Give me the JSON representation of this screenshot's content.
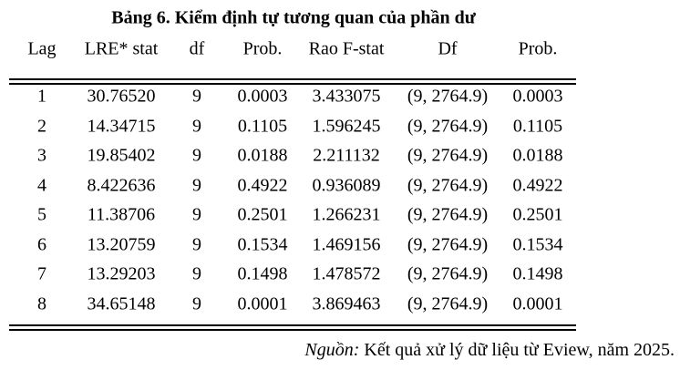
{
  "table": {
    "title": "Bảng 6. Kiểm định tự tương quan của phần dư",
    "header": [
      "Lag",
      "LRE* stat",
      "df",
      "Prob.",
      "Rao F-stat",
      "Df",
      "Prob."
    ],
    "rows": [
      [
        "1",
        "30.76520",
        "9",
        "0.0003",
        "3.433075",
        "(9, 2764.9)",
        "0.0003"
      ],
      [
        "2",
        "14.34715",
        "9",
        "0.1105",
        "1.596245",
        "(9, 2764.9)",
        "0.1105"
      ],
      [
        "3",
        "19.85402",
        "9",
        "0.0188",
        "2.211132",
        "(9, 2764.9)",
        "0.0188"
      ],
      [
        "4",
        "8.422636",
        "9",
        "0.4922",
        "0.936089",
        "(9, 2764.9)",
        "0.4922"
      ],
      [
        "5",
        "11.38706",
        "9",
        "0.2501",
        "1.266231",
        "(9, 2764.9)",
        "0.2501"
      ],
      [
        "6",
        "13.20759",
        "9",
        "0.1534",
        "1.469156",
        "(9, 2764.9)",
        "0.1534"
      ],
      [
        "7",
        "13.29203",
        "9",
        "0.1498",
        "1.478572",
        "(9, 2764.9)",
        "0.1498"
      ],
      [
        "8",
        "34.65148",
        "9",
        "0.0001",
        "3.869463",
        "(9, 2764.9)",
        "0.0001"
      ]
    ]
  },
  "source": {
    "label": "Nguồn:",
    "text": "Kết quả xử lý dữ liệu từ Eview, năm 2025."
  }
}
